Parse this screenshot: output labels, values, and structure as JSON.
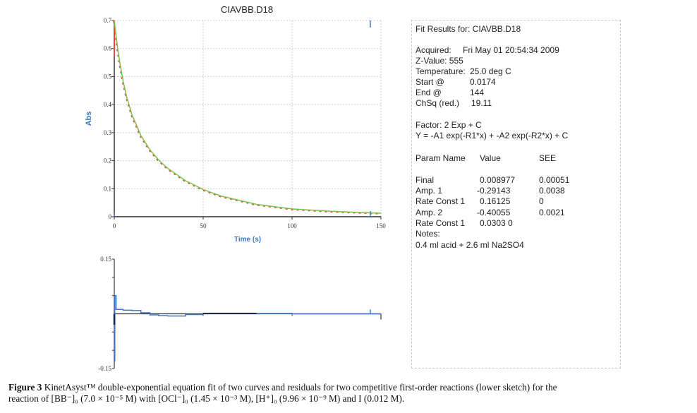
{
  "chart_data": [
    {
      "type": "line",
      "title": "CIAVBB.D18",
      "xlabel": "Time (s)",
      "ylabel": "Abs",
      "xlim": [
        0,
        150
      ],
      "ylim": [
        0,
        0.7
      ],
      "xticks": [
        "0",
        "50",
        "100",
        "150"
      ],
      "yticks": [
        "0",
        "0.1",
        "0.2",
        "0.3",
        "0.4",
        "0.5",
        "0.6",
        "0.7"
      ],
      "grid": true,
      "colors": {
        "data": "#e8463a",
        "fit": "#7cc24a",
        "axis": "#333333",
        "label": "#3b78c4",
        "cursor": "#3b78c4"
      },
      "cursor_x": 144,
      "x": [
        0,
        1,
        2,
        3,
        5,
        7,
        10,
        15,
        20,
        25,
        30,
        40,
        50,
        60,
        80,
        100,
        120,
        144,
        150
      ],
      "series": [
        {
          "values": [
            0.7,
            0.646,
            0.597,
            0.554,
            0.483,
            0.427,
            0.363,
            0.289,
            0.239,
            0.202,
            0.173,
            0.129,
            0.097,
            0.074,
            0.044,
            0.028,
            0.02,
            0.014,
            0.013
          ]
        }
      ]
    },
    {
      "type": "line",
      "ylim": [
        -0.15,
        0.15
      ],
      "xlim": [
        0,
        150
      ],
      "yticks": [
        "0.15",
        "-0.15"
      ],
      "colors": {
        "residual": "#3b78c4",
        "axis": "#333333"
      },
      "cursor_x": 144,
      "x": [
        0,
        0.3,
        1,
        5,
        10,
        15,
        20,
        25,
        30,
        40,
        50,
        80,
        100,
        150
      ],
      "series": [
        {
          "values": [
            -0.13,
            0.05,
            0.012,
            0.01,
            0.009,
            0.003,
            -0.003,
            -0.005,
            -0.006,
            -0.002,
            0.001,
            0.001,
            0.0,
            0.0
          ]
        }
      ]
    }
  ],
  "fit_panel": {
    "title": "Fit Results for:   CIAVBB.D18",
    "acquired_label": "Acquired:",
    "acquired_value": "Fri May 01 20:54:34 2009",
    "zvalue": "Z-Value: 555",
    "temperature_label": "Temperature:",
    "temperature_value": "25.0 deg C",
    "start_label": "Start @",
    "start_value": "0.0174",
    "end_label": "End @",
    "end_value": "144",
    "chsq_label": "ChSq (red.)",
    "chsq_value": "19.11",
    "factor": "Factor: 2 Exp + C",
    "equation": "Y = -A1 exp(-R1*x) + -A2 exp(-R2*x) + C",
    "headers": [
      "Param Name",
      "Value",
      "SEE"
    ],
    "params": [
      {
        "name": "Final",
        "value": "0.008977",
        "see": "0.00051"
      },
      {
        "name": "Amp. 1",
        "value": "-0.29143",
        "see": "0.0038"
      },
      {
        "name": "Rate Const 1",
        "value": "0.16125",
        "see": "0"
      },
      {
        "name": "Amp. 2",
        "value": "-0.40055",
        "see": "0.0021"
      },
      {
        "name": "Rate Const 1",
        "value": "0.0303  0",
        "see": ""
      }
    ],
    "notes_label": "Notes:",
    "notes": "0.4 ml acid + 2.6 ml Na2SO4"
  },
  "caption": {
    "label": "Figure 3",
    "line1": " KinetAsyst™ double-exponential equation fit of two curves and residuals for two competitive first-order reactions (lower sketch) for the",
    "line2": "reaction of [BB⁻]₀ (7.0 × 10⁻⁵ M) with [OCl⁻]₀ (1.45 × 10⁻³ M), [H⁺]₀ (9.96 × 10⁻⁹ M) and I (0.012 M)."
  }
}
